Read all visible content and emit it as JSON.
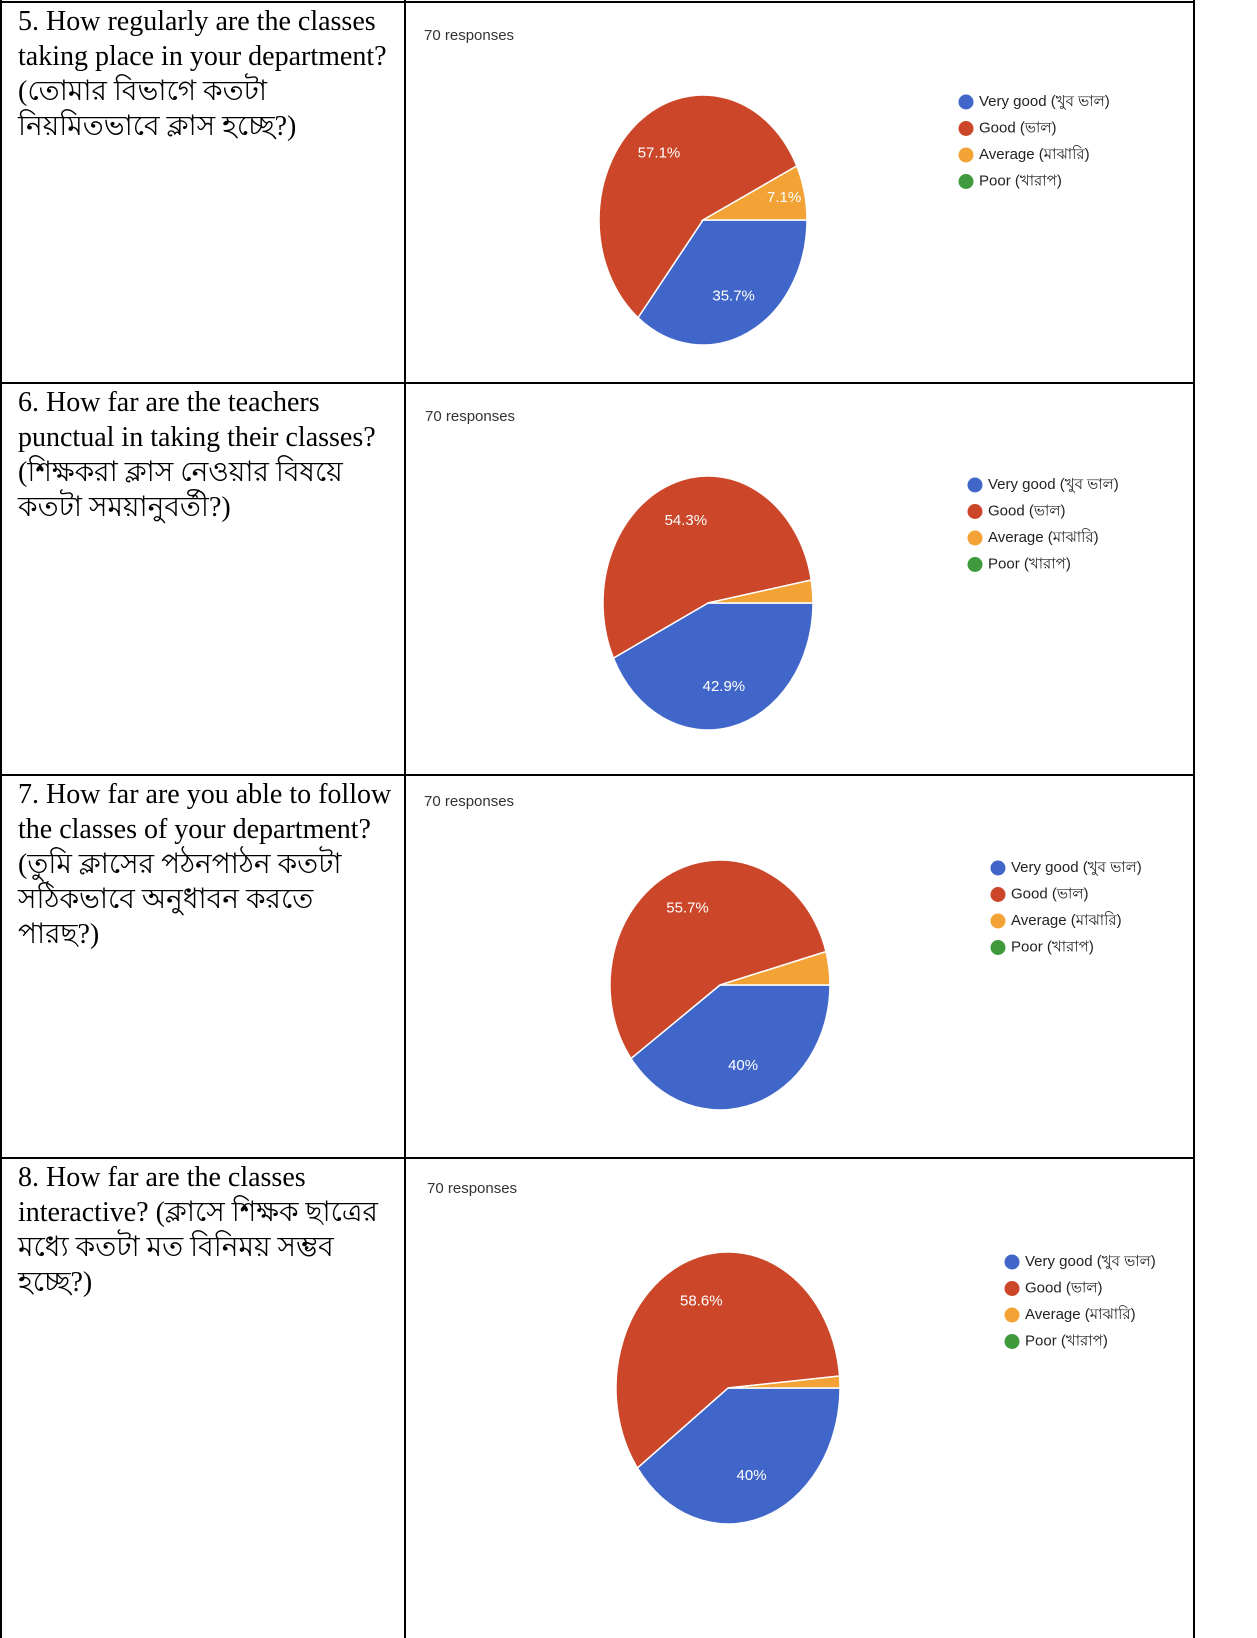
{
  "chart_data": [
    {
      "type": "pie",
      "title": "5. How regularly are the classes taking place in your department? (তোমার বিভাগে কতটা নিয়মিতভাবে ক্লাস হচ্ছে?)",
      "subtitle": "70 responses",
      "categories": [
        "Very good (খুব ভাল)",
        "Good (ভাল)",
        "Average (মাঝারি)",
        "Poor (খারাপ)"
      ],
      "values": [
        35.7,
        57.1,
        7.1,
        0
      ],
      "value_labels": [
        "35.7%",
        "57.1%",
        "7.1%",
        null
      ],
      "colors": [
        "#4166c9",
        "#cc4629",
        "#f3a236",
        "#3e9a3c"
      ]
    },
    {
      "type": "pie",
      "title": "6. How far are the teachers punctual in taking their classes? (শিক্ষকরা ক্লাস নেওয়ার বিষয়ে কতটা সময়ানুবর্তী?)",
      "subtitle": "70 responses",
      "categories": [
        "Very good (খুব ভাল)",
        "Good (ভাল)",
        "Average (মাঝারি)",
        "Poor (খারাপ)"
      ],
      "values": [
        42.9,
        54.3,
        2.9,
        0
      ],
      "value_labels": [
        "42.9%",
        "54.3%",
        null,
        null
      ],
      "colors": [
        "#4166c9",
        "#cc4629",
        "#f3a236",
        "#3e9a3c"
      ]
    },
    {
      "type": "pie",
      "title": "7. How far are you able to follow the classes of your department? (তুমি ক্লাসের পঠনপাঠন কতটা সঠিকভাবে অনুধাবন করতে পারছ?)",
      "subtitle": "70 responses",
      "categories": [
        "Very good (খুব ভাল)",
        "Good (ভাল)",
        "Average (মাঝারি)",
        "Poor (খারাপ)"
      ],
      "values": [
        40,
        55.7,
        4.3,
        0
      ],
      "value_labels": [
        "40%",
        "55.7%",
        null,
        null
      ],
      "colors": [
        "#4166c9",
        "#cc4629",
        "#f3a236",
        "#3e9a3c"
      ]
    },
    {
      "type": "pie",
      "title": "8. How far are the classes interactive? (ক্লাসে শিক্ষক ছাত্রের মধ্যে কতটা মত বিনিময় সম্ভব হচ্ছে?)",
      "subtitle": "70 responses",
      "categories": [
        "Very good (খুব ভাল)",
        "Good (ভাল)",
        "Average (মাঝারি)",
        "Poor (খারাপ)"
      ],
      "values": [
        40,
        58.6,
        1.4,
        0
      ],
      "value_labels": [
        "40%",
        "58.6%",
        null,
        null
      ],
      "colors": [
        "#4166c9",
        "#cc4629",
        "#f3a236",
        "#3e9a3c"
      ]
    }
  ]
}
